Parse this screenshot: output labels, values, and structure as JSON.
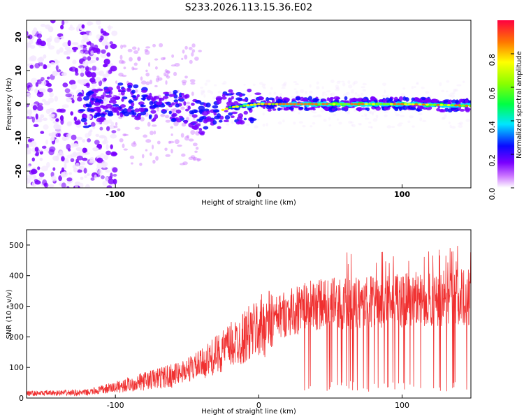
{
  "title": "S233.2026.113.15.36.E02",
  "chart_data": [
    {
      "type": "heatmap",
      "name": "spectrogram",
      "xlabel": "Height of straight line (km)",
      "ylabel": "Frequency (Hz)",
      "xlim": [
        -162,
        148
      ],
      "ylim": [
        -25,
        25
      ],
      "xticks": [
        "-100",
        "0",
        "100"
      ],
      "yticks": [
        "20",
        "10",
        "0",
        "-10",
        "-20"
      ],
      "colorbar": {
        "label": "Normalized spectral amplitude",
        "range": [
          0,
          1
        ],
        "ticks": [
          "0.0",
          "0.2",
          "0.4",
          "0.6",
          "0.8"
        ]
      },
      "ridge": [
        {
          "x": -120,
          "freq": -2
        },
        {
          "x": -100,
          "freq": 2
        },
        {
          "x": -80,
          "freq": 0
        },
        {
          "x": -60,
          "freq": -1
        },
        {
          "x": -40,
          "freq": -4
        },
        {
          "x": -20,
          "freq": -1
        },
        {
          "x": 0,
          "freq": 0
        },
        {
          "x": 20,
          "freq": 0
        },
        {
          "x": 60,
          "freq": 0
        },
        {
          "x": 100,
          "freq": 0
        },
        {
          "x": 148,
          "freq": -0.5
        }
      ]
    },
    {
      "type": "line",
      "name": "snr",
      "xlabel": "Height of straight line (km)",
      "ylabel": "SNR (10 * v/v)",
      "xlim": [
        -162,
        148
      ],
      "ylim": [
        0,
        550
      ],
      "xticks": [
        "-100",
        "0",
        "100"
      ],
      "yticks": [
        "0",
        "100",
        "200",
        "300",
        "400",
        "500"
      ],
      "color": "#f03030",
      "trend": [
        {
          "x": -162,
          "y": 15
        },
        {
          "x": -120,
          "y": 18
        },
        {
          "x": -100,
          "y": 35
        },
        {
          "x": -80,
          "y": 55
        },
        {
          "x": -60,
          "y": 75
        },
        {
          "x": -40,
          "y": 110
        },
        {
          "x": -20,
          "y": 170
        },
        {
          "x": 0,
          "y": 230
        },
        {
          "x": 20,
          "y": 280
        },
        {
          "x": 40,
          "y": 305
        },
        {
          "x": 60,
          "y": 310
        },
        {
          "x": 80,
          "y": 315
        },
        {
          "x": 100,
          "y": 320
        },
        {
          "x": 120,
          "y": 325
        },
        {
          "x": 148,
          "y": 330
        }
      ]
    }
  ]
}
